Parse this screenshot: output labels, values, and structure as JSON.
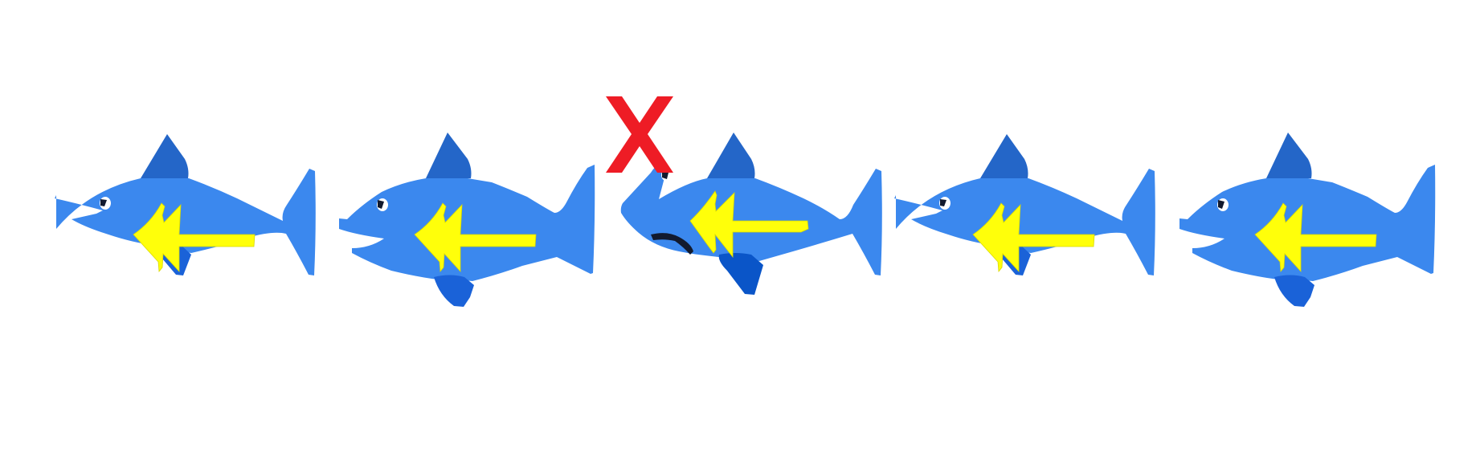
{
  "puzzle": {
    "prompt": "",
    "fish": [
      {
        "id": 1,
        "facing": "left",
        "arrow": "left",
        "mouth": "open",
        "face": "neutral",
        "selected": false
      },
      {
        "id": 2,
        "facing": "left",
        "arrow": "left",
        "mouth": "open",
        "face": "neutral",
        "selected": false
      },
      {
        "id": 3,
        "facing": "left",
        "arrow": "left",
        "mouth": "closed",
        "face": "frown",
        "selected": true
      },
      {
        "id": 4,
        "facing": "left",
        "arrow": "left",
        "mouth": "open",
        "face": "neutral",
        "selected": false
      },
      {
        "id": 5,
        "facing": "left",
        "arrow": "left",
        "mouth": "open",
        "face": "neutral",
        "selected": false
      }
    ],
    "marker": {
      "glyph": "X",
      "target_fish": 3
    }
  },
  "colors": {
    "background": "#ffffff",
    "body": "#3b88ee",
    "fin_dark": "#2466c8",
    "fin_bottom": "#1a62d8",
    "fin_bottom_selected": "#0a55c8",
    "arrow": "#ffff0a",
    "eye_white": "#ffffff",
    "pupil": "#121a2e",
    "marker": "#ee1c25"
  },
  "icons": {
    "fish": "fish-icon",
    "arrow": "left-arrow-icon",
    "marker": "x-mark-icon"
  }
}
